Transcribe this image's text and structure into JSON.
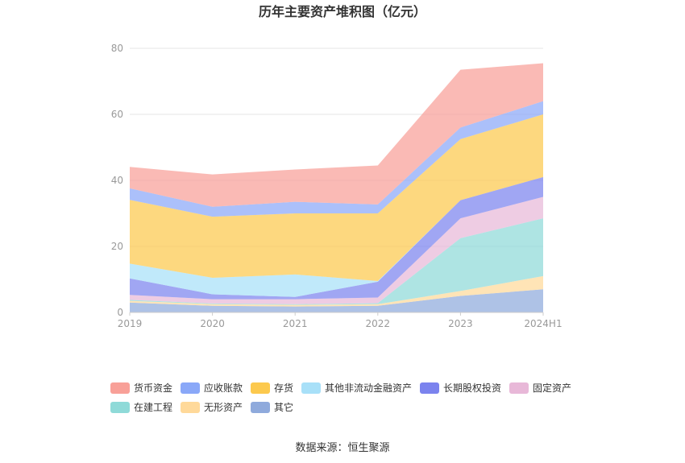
{
  "chart_data": {
    "type": "area",
    "stacked": true,
    "title": "历年主要资产堆积图（亿元）",
    "xlabel": "",
    "ylabel": "",
    "ylim": [
      0,
      80
    ],
    "yticks": [
      0,
      20,
      40,
      60,
      80
    ],
    "categories": [
      "2019",
      "2020",
      "2021",
      "2022",
      "2023",
      "2024H1"
    ],
    "grid": true,
    "legend_position": "bottom",
    "series": [
      {
        "name": "其它",
        "color": "#8faadc",
        "values": [
          3.0,
          2.0,
          1.8,
          2.0,
          5.0,
          7.0
        ]
      },
      {
        "name": "无形资产",
        "color": "#ffd99a",
        "values": [
          0.5,
          0.5,
          0.5,
          0.5,
          1.5,
          4.0
        ]
      },
      {
        "name": "在建工程",
        "color": "#8fdad8",
        "values": [
          0.3,
          0.2,
          0.2,
          0.3,
          16.0,
          17.5
        ]
      },
      {
        "name": "固定资产",
        "color": "#e8b8d8",
        "values": [
          1.5,
          1.3,
          1.5,
          1.7,
          6.0,
          6.5
        ]
      },
      {
        "name": "长期股权投资",
        "color": "#7b83ee",
        "values": [
          5.0,
          1.5,
          0.7,
          4.8,
          5.5,
          6.0
        ]
      },
      {
        "name": "其他非流动金融资产",
        "color": "#a8e0f8",
        "values": [
          4.5,
          5.0,
          6.8,
          0.2,
          0.0,
          0.0
        ]
      },
      {
        "name": "存货",
        "color": "#fcc94e",
        "values": [
          19.3,
          18.5,
          18.5,
          20.5,
          18.5,
          19.0
        ]
      },
      {
        "name": "应收账款",
        "color": "#8aa8f8",
        "values": [
          3.5,
          3.0,
          3.5,
          2.7,
          3.5,
          4.0
        ]
      },
      {
        "name": "货币资金",
        "color": "#f8a098",
        "values": [
          6.5,
          9.8,
          9.8,
          11.8,
          17.5,
          11.5
        ]
      }
    ],
    "legend_order": [
      "货币资金",
      "应收账款",
      "存货",
      "其他非流动金融资产",
      "长期股权投资",
      "固定资产",
      "在建工程",
      "无形资产",
      "其它"
    ],
    "source": "数据来源：恒生聚源"
  }
}
